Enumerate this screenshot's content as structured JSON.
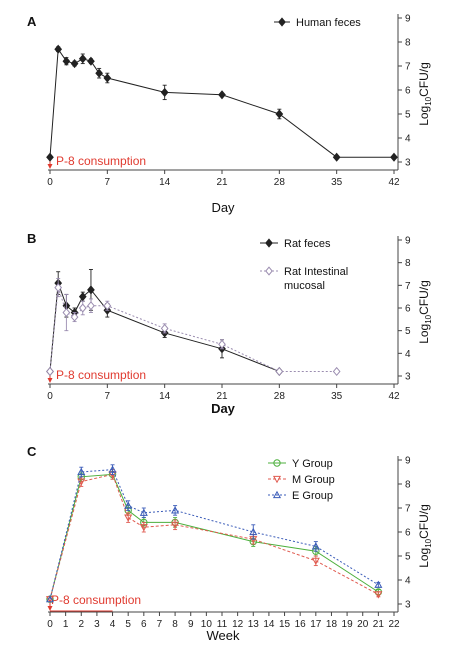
{
  "colors": {
    "annotation": "#e03a2f",
    "black": "#222222",
    "rat_mucosal": "#9b8db0",
    "y_group": "#4caf3c",
    "m_group": "#e05a4f",
    "e_group": "#3a5bb8"
  },
  "chart_data": [
    {
      "type": "line",
      "panel_label": "A",
      "xlabel": "Day",
      "ylabel_prefix": "Log",
      "ylabel_sub": "10",
      "ylabel_suffix": "CFU/g",
      "xlim": [
        0,
        42
      ],
      "ylim": [
        3,
        9
      ],
      "x_ticks": [
        "0",
        "7",
        "14",
        "21",
        "28",
        "35",
        "42"
      ],
      "y_ticks": [
        "3",
        "4",
        "5",
        "6",
        "7",
        "8",
        "9"
      ],
      "annotation": "P-8 consumption",
      "legend_position": "top-right",
      "series": [
        {
          "name": "Human feces",
          "marker": "diamond",
          "x": [
            0,
            1,
            2,
            3,
            4,
            5,
            6,
            7,
            14,
            21,
            28,
            35,
            42
          ],
          "y": [
            3.2,
            7.7,
            7.2,
            7.1,
            7.3,
            7.2,
            6.7,
            6.5,
            5.9,
            5.8,
            5.0,
            3.2,
            3.2
          ],
          "err": [
            0,
            0.1,
            0.15,
            0.1,
            0.2,
            0.1,
            0.2,
            0.2,
            0.3,
            0,
            0.2,
            0,
            0
          ]
        }
      ]
    },
    {
      "type": "line",
      "panel_label": "B",
      "xlabel": "Day",
      "ylabel_prefix": "Log",
      "ylabel_sub": "10",
      "ylabel_suffix": "CFU/g",
      "xlim": [
        0,
        42
      ],
      "ylim": [
        3,
        9
      ],
      "x_ticks": [
        "0",
        "7",
        "14",
        "21",
        "28",
        "35",
        "42"
      ],
      "y_ticks": [
        "3",
        "4",
        "5",
        "6",
        "7",
        "8",
        "9"
      ],
      "annotation": "P-8 consumption",
      "legend_position": "top-right",
      "series": [
        {
          "name": "Rat feces",
          "marker": "diamond",
          "x": [
            0,
            1,
            2,
            3,
            4,
            5,
            7,
            14,
            21,
            28
          ],
          "y": [
            3.2,
            7.1,
            6.1,
            5.8,
            6.5,
            6.8,
            5.9,
            4.9,
            4.2,
            3.2
          ],
          "err": [
            0,
            0.5,
            0.5,
            0.2,
            0.2,
            0.9,
            0.3,
            0.2,
            0.4,
            0
          ]
        },
        {
          "name": "Rat Intestinal mucosal",
          "marker": "diamond-open",
          "x": [
            0,
            1,
            2,
            3,
            4,
            5,
            7,
            14,
            21,
            28,
            35
          ],
          "y": [
            3.2,
            6.9,
            5.8,
            5.6,
            6.0,
            6.1,
            6.1,
            5.1,
            4.4,
            3.2,
            3.2
          ],
          "err": [
            0,
            0.4,
            0.8,
            0.2,
            0.3,
            0.3,
            0.2,
            0.2,
            0.2,
            0,
            0
          ]
        }
      ]
    },
    {
      "type": "line",
      "panel_label": "C",
      "xlabel": "Week",
      "ylabel_prefix": "Log",
      "ylabel_sub": "10",
      "ylabel_suffix": "CFU/g",
      "xlim": [
        0,
        22
      ],
      "ylim": [
        3,
        9
      ],
      "x_ticks": [
        "0",
        "1",
        "2",
        "3",
        "4",
        "5",
        "6",
        "7",
        "8",
        "9",
        "10",
        "11",
        "12",
        "13",
        "14",
        "15",
        "16",
        "17",
        "18",
        "19",
        "20",
        "21",
        "22"
      ],
      "y_ticks": [
        "3",
        "4",
        "5",
        "6",
        "7",
        "8",
        "9"
      ],
      "annotation": "P-8 consumption",
      "legend_position": "top-right",
      "series": [
        {
          "name": "Y Group",
          "marker": "circle-open",
          "x": [
            0,
            2,
            4,
            5,
            6,
            8,
            13,
            17,
            21
          ],
          "y": [
            3.2,
            8.3,
            8.4,
            6.9,
            6.4,
            6.4,
            5.6,
            5.2,
            3.5
          ],
          "err": [
            0,
            0.2,
            0.2,
            0.2,
            0.2,
            0.2,
            0.2,
            0.2,
            0.1
          ]
        },
        {
          "name": "M Group",
          "marker": "triangle-down-open",
          "x": [
            0,
            2,
            4,
            5,
            6,
            8,
            13,
            17,
            21
          ],
          "y": [
            3.2,
            8.1,
            8.4,
            6.6,
            6.2,
            6.3,
            5.7,
            4.8,
            3.4
          ],
          "err": [
            0,
            0.2,
            0.2,
            0.2,
            0.2,
            0.2,
            0.2,
            0.2,
            0.1
          ]
        },
        {
          "name": "E Group",
          "marker": "triangle-up-open",
          "x": [
            0,
            2,
            4,
            5,
            6,
            8,
            13,
            17,
            21
          ],
          "y": [
            3.2,
            8.5,
            8.6,
            7.1,
            6.8,
            6.9,
            6.0,
            5.4,
            3.8
          ],
          "err": [
            0,
            0.2,
            0.2,
            0.2,
            0.2,
            0.2,
            0.3,
            0.2,
            0.1
          ]
        }
      ]
    }
  ]
}
